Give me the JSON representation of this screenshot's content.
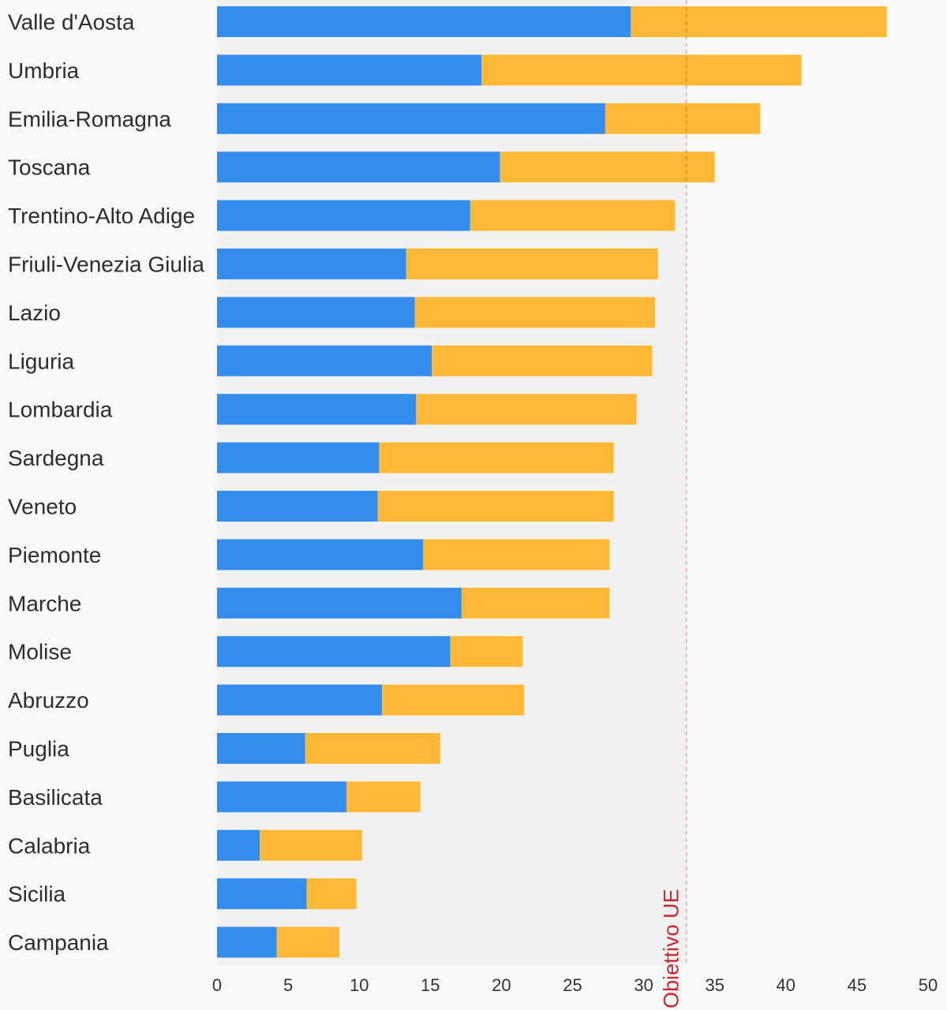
{
  "chart_data": {
    "type": "bar",
    "orientation": "horizontal",
    "stacked": true,
    "title": "",
    "xlabel": "",
    "ylabel": "",
    "xlim": [
      0,
      50
    ],
    "x_ticks": [
      0,
      5,
      10,
      15,
      20,
      25,
      30,
      35,
      40,
      45,
      50
    ],
    "grid": false,
    "legend": "none",
    "categories": [
      "Valle d'Aosta",
      "Umbria",
      "Emilia-Romagna",
      "Toscana",
      "Trentino-Alto Adige",
      "Friuli-Venezia Giulia",
      "Lazio",
      "Liguria",
      "Lombardia",
      "Sardegna",
      "Veneto",
      "Piemonte",
      "Marche",
      "Molise",
      "Abruzzo",
      "Puglia",
      "Basilicata",
      "Calabria",
      "Sicilia",
      "Campania"
    ],
    "series": [
      {
        "color": "#348ced",
        "values": [
          29.1,
          18.6,
          27.3,
          19.9,
          17.8,
          13.3,
          13.9,
          15.1,
          14.0,
          11.4,
          11.3,
          14.5,
          17.2,
          16.4,
          11.6,
          6.2,
          9.1,
          3.0,
          6.3,
          4.2
        ]
      },
      {
        "color": "#ffb937",
        "values": [
          18.0,
          22.5,
          10.9,
          15.1,
          14.4,
          17.7,
          16.9,
          15.5,
          15.5,
          16.5,
          16.6,
          13.1,
          10.4,
          5.1,
          10.0,
          9.5,
          5.2,
          7.2,
          3.5,
          4.4
        ]
      }
    ],
    "reference_line": {
      "value": 33,
      "label": "Obiettivo UE",
      "color": "#c8282d"
    },
    "colors": {
      "background": "#f9f9f9",
      "plot_background": "#f2f1f1"
    }
  }
}
